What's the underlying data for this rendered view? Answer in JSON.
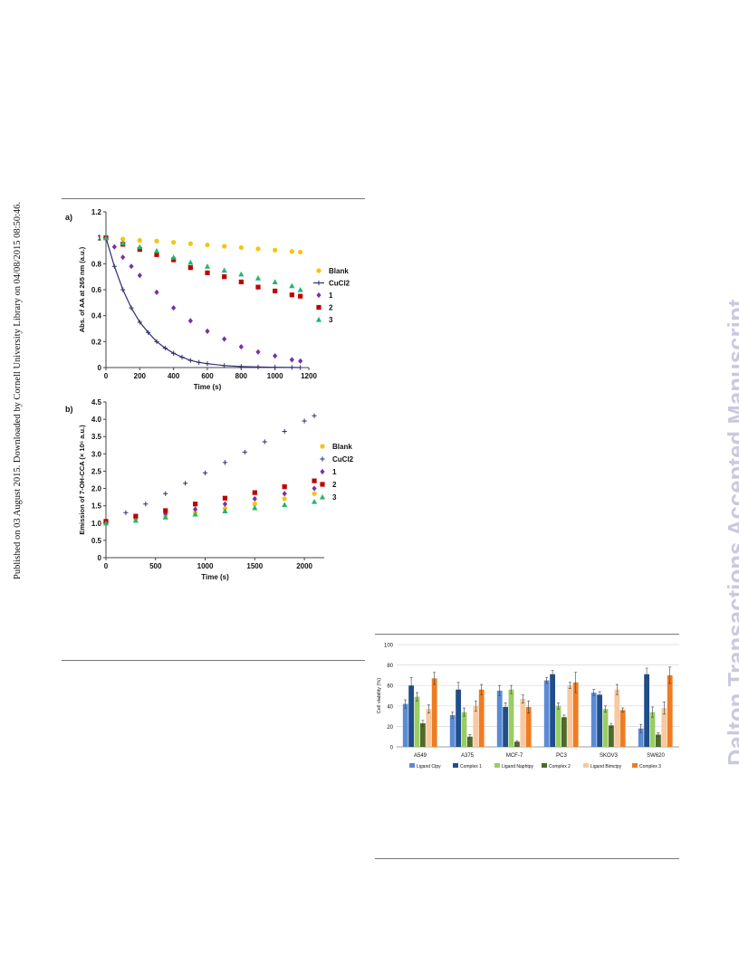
{
  "side_note": "Published on 03 August 2015. Downloaded by Cornell University Library on 04/08/2015 08:50:46.",
  "watermark": "Dalton Transactions Accepted Manuscript",
  "colors": {
    "blank": "#f5c40f",
    "cucl2": "#2f2f6e",
    "c1": "#7a2fa8",
    "c2": "#c00000",
    "c3": "#22b573",
    "ligand_ctpy": "#5b8bd6",
    "complex1": "#1f4e8c",
    "ligand_naphtpy": "#9acd64",
    "complex2": "#4f6a2a",
    "ligand_bimctpy": "#f8c8a0",
    "complex3": "#f07c22"
  },
  "chart_data": [
    {
      "type": "scatter",
      "panel_label": "a)",
      "xlabel": "Time (s)",
      "ylabel": "Abs. of AA at 265 nm (a.u.)",
      "xlim": [
        0,
        1200
      ],
      "ylim": [
        0,
        1.2
      ],
      "xticks": [
        "0",
        "200",
        "400",
        "600",
        "800",
        "1000",
        "1200"
      ],
      "yticks": [
        "0",
        "0.2",
        "0.4",
        "0.6",
        "0.8",
        "1",
        "1.2"
      ],
      "legend_position": "right",
      "series": [
        {
          "name": "Blank",
          "key": "blank",
          "marker": "circle",
          "x": [
            0,
            100,
            200,
            300,
            400,
            500,
            600,
            700,
            800,
            900,
            1000,
            1100,
            1150
          ],
          "y": [
            1.0,
            0.99,
            0.98,
            0.975,
            0.965,
            0.955,
            0.945,
            0.935,
            0.925,
            0.915,
            0.905,
            0.895,
            0.89
          ]
        },
        {
          "name": "CuCl2",
          "key": "cucl2",
          "marker": "plus",
          "line": true,
          "x": [
            0,
            50,
            100,
            150,
            200,
            250,
            300,
            350,
            400,
            450,
            500,
            550,
            600,
            700,
            800,
            900,
            1000,
            1100,
            1150
          ],
          "y": [
            1.0,
            0.78,
            0.6,
            0.46,
            0.35,
            0.27,
            0.2,
            0.15,
            0.11,
            0.08,
            0.055,
            0.04,
            0.03,
            0.015,
            0.008,
            0.004,
            0.002,
            0.001,
            0.0
          ]
        },
        {
          "name": "1",
          "key": "c1",
          "marker": "diamond",
          "x": [
            0,
            50,
            100,
            150,
            200,
            300,
            400,
            500,
            600,
            700,
            800,
            900,
            1000,
            1100,
            1150
          ],
          "y": [
            1.0,
            0.93,
            0.85,
            0.78,
            0.71,
            0.58,
            0.46,
            0.36,
            0.28,
            0.22,
            0.16,
            0.12,
            0.09,
            0.06,
            0.05
          ]
        },
        {
          "name": "2",
          "key": "c2",
          "marker": "square",
          "x": [
            0,
            100,
            200,
            300,
            400,
            500,
            600,
            700,
            800,
            900,
            1000,
            1100,
            1150
          ],
          "y": [
            1.0,
            0.95,
            0.91,
            0.87,
            0.83,
            0.77,
            0.73,
            0.7,
            0.66,
            0.62,
            0.59,
            0.56,
            0.55
          ]
        },
        {
          "name": "3",
          "key": "c3",
          "marker": "triangle",
          "x": [
            0,
            100,
            200,
            300,
            400,
            500,
            600,
            700,
            800,
            900,
            1000,
            1100,
            1150
          ],
          "y": [
            1.0,
            0.96,
            0.93,
            0.9,
            0.85,
            0.81,
            0.78,
            0.75,
            0.72,
            0.69,
            0.66,
            0.63,
            0.6
          ]
        }
      ]
    },
    {
      "type": "scatter",
      "panel_label": "b)",
      "xlabel": "Time (s)",
      "ylabel": "Emission of 7-OH-CCA (× 10⁶ a.u.)",
      "xlim": [
        0,
        2200
      ],
      "ylim": [
        0,
        4.5
      ],
      "xticks": [
        "0",
        "500",
        "1000",
        "1500",
        "2000"
      ],
      "yticks": [
        "0",
        "0.5",
        "1.0",
        "1.5",
        "2.0",
        "2.5",
        "3.0",
        "3.5",
        "4.0",
        "4.5"
      ],
      "legend_position": "right",
      "series": [
        {
          "name": "Blank",
          "key": "blank",
          "marker": "circle",
          "x": [
            0,
            300,
            600,
            900,
            1200,
            1500,
            1800,
            2100
          ],
          "y": [
            1.05,
            1.12,
            1.2,
            1.3,
            1.42,
            1.55,
            1.7,
            1.85
          ]
        },
        {
          "name": "CuCl2",
          "key": "cucl2",
          "marker": "plus",
          "x": [
            0,
            200,
            400,
            600,
            800,
            1000,
            1200,
            1400,
            1600,
            1800,
            2000,
            2100
          ],
          "y": [
            1.05,
            1.3,
            1.55,
            1.85,
            2.15,
            2.45,
            2.75,
            3.05,
            3.35,
            3.65,
            3.95,
            4.1
          ]
        },
        {
          "name": "1",
          "key": "c1",
          "marker": "diamond",
          "x": [
            0,
            300,
            600,
            900,
            1200,
            1500,
            1800,
            2100
          ],
          "y": [
            1.05,
            1.15,
            1.27,
            1.4,
            1.55,
            1.7,
            1.85,
            2.0
          ]
        },
        {
          "name": "2",
          "key": "c2",
          "marker": "square",
          "x": [
            0,
            300,
            600,
            900,
            1200,
            1500,
            1800,
            2100
          ],
          "y": [
            1.05,
            1.2,
            1.36,
            1.55,
            1.72,
            1.88,
            2.05,
            2.22
          ]
        },
        {
          "name": "3",
          "key": "c3",
          "marker": "triangle",
          "x": [
            0,
            300,
            600,
            900,
            1200,
            1500,
            1800,
            2100
          ],
          "y": [
            1.0,
            1.08,
            1.17,
            1.26,
            1.35,
            1.44,
            1.53,
            1.62
          ]
        }
      ]
    },
    {
      "type": "bar",
      "ylabel": "Cell viability (%)",
      "ylim": [
        0,
        100
      ],
      "yticks": [
        "0",
        "20",
        "40",
        "60",
        "80",
        "100"
      ],
      "categories": [
        "A549",
        "A375",
        "MCF-7",
        "PC3",
        "SKOV3",
        "SW620"
      ],
      "legend_position": "bottom",
      "series": [
        {
          "name": "Ligand Ctpy",
          "key": "ligand_ctpy",
          "values": [
            42,
            31,
            55,
            65,
            53,
            18
          ],
          "errors": [
            4,
            3,
            5,
            3,
            3,
            4
          ]
        },
        {
          "name": "Complex 1",
          "key": "complex1",
          "values": [
            60,
            56,
            39,
            71,
            51,
            71
          ],
          "errors": [
            8,
            7,
            4,
            4,
            3,
            6
          ]
        },
        {
          "name": "Ligand Naphtpy",
          "key": "ligand_naphtpy",
          "values": [
            49,
            34,
            56,
            40,
            37,
            34
          ],
          "errors": [
            4,
            4,
            4,
            3,
            3,
            5
          ]
        },
        {
          "name": "Complex 2",
          "key": "complex2",
          "values": [
            23,
            10,
            5,
            29,
            21,
            12
          ],
          "errors": [
            3,
            2,
            1,
            2,
            2,
            2
          ]
        },
        {
          "name": "Ligand Bimctpy",
          "key": "ligand_bimctpy",
          "values": [
            37,
            40,
            47,
            60,
            56,
            38
          ],
          "errors": [
            4,
            5,
            4,
            3,
            5,
            6
          ]
        },
        {
          "name": "Complex 3",
          "key": "complex3",
          "values": [
            67,
            56,
            39,
            63,
            36,
            70
          ],
          "errors": [
            6,
            5,
            6,
            10,
            2,
            8
          ]
        }
      ]
    }
  ]
}
